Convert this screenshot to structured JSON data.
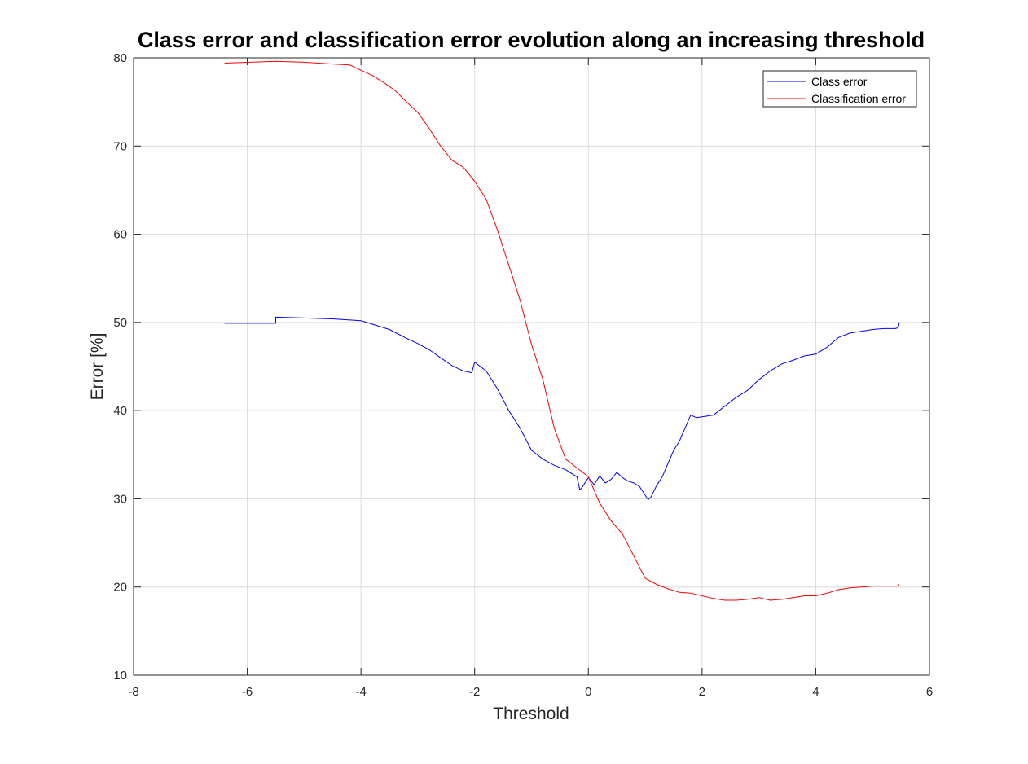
{
  "chart_data": {
    "type": "line",
    "title": "Class error and classification error evolution along an increasing threshold",
    "xlabel": "Threshold",
    "ylabel": "Error [%]",
    "xlim": [
      -8,
      6
    ],
    "ylim": [
      10,
      80
    ],
    "xticks": [
      -8,
      -6,
      -4,
      -2,
      0,
      2,
      4,
      6
    ],
    "yticks": [
      10,
      20,
      30,
      40,
      50,
      60,
      70,
      80
    ],
    "xtick_labels": [
      "-8",
      "-6",
      "-4",
      "-2",
      "0",
      "2",
      "4",
      "6"
    ],
    "ytick_labels": [
      "10",
      "20",
      "30",
      "40",
      "50",
      "60",
      "70",
      "80"
    ],
    "grid": true,
    "legend_position": "top-right",
    "series": [
      {
        "name": "Class error",
        "color": "#0000ff",
        "x": [
          -6.4,
          -5.5,
          -5.5,
          -5.0,
          -4.5,
          -4.0,
          -3.8,
          -3.5,
          -3.2,
          -3.0,
          -2.8,
          -2.6,
          -2.4,
          -2.2,
          -2.05,
          -2.0,
          -1.8,
          -1.6,
          -1.4,
          -1.2,
          -1.0,
          -0.8,
          -0.6,
          -0.4,
          -0.2,
          -0.15,
          -0.1,
          0.0,
          0.1,
          0.2,
          0.3,
          0.4,
          0.5,
          0.6,
          0.7,
          0.8,
          0.9,
          1.0,
          1.05,
          1.1,
          1.2,
          1.3,
          1.4,
          1.5,
          1.6,
          1.7,
          1.8,
          1.9,
          2.0,
          2.2,
          2.4,
          2.6,
          2.8,
          3.0,
          3.2,
          3.4,
          3.6,
          3.8,
          4.0,
          4.2,
          4.4,
          4.6,
          4.8,
          5.0,
          5.2,
          5.4,
          5.45,
          5.47
        ],
        "values": [
          49.9,
          49.9,
          50.6,
          50.5,
          50.4,
          50.2,
          49.8,
          49.2,
          48.2,
          47.6,
          46.9,
          46.0,
          45.1,
          44.5,
          44.3,
          45.5,
          44.5,
          42.5,
          40.0,
          38.0,
          35.5,
          34.5,
          33.8,
          33.3,
          32.5,
          31.0,
          31.4,
          32.4,
          31.6,
          32.6,
          31.8,
          32.2,
          33.0,
          32.4,
          32.0,
          31.8,
          31.4,
          30.4,
          29.9,
          30.2,
          31.5,
          32.5,
          34.0,
          35.5,
          36.5,
          38.0,
          39.5,
          39.2,
          39.3,
          39.5,
          40.5,
          41.5,
          42.3,
          43.5,
          44.5,
          45.3,
          45.7,
          46.2,
          46.4,
          47.2,
          48.3,
          48.8,
          49.0,
          49.2,
          49.3,
          49.3,
          49.4,
          50.0
        ]
      },
      {
        "name": "Classification error",
        "color": "#ff0000",
        "x": [
          -6.4,
          -5.5,
          -5.0,
          -4.5,
          -4.2,
          -4.0,
          -3.8,
          -3.6,
          -3.4,
          -3.2,
          -3.0,
          -2.8,
          -2.6,
          -2.4,
          -2.2,
          -2.0,
          -1.8,
          -1.6,
          -1.4,
          -1.2,
          -1.0,
          -0.8,
          -0.6,
          -0.4,
          -0.2,
          0.0,
          0.2,
          0.4,
          0.6,
          0.8,
          1.0,
          1.2,
          1.4,
          1.6,
          1.8,
          2.0,
          2.2,
          2.4,
          2.6,
          2.8,
          3.0,
          3.2,
          3.4,
          3.6,
          3.8,
          4.0,
          4.2,
          4.4,
          4.6,
          4.8,
          5.0,
          5.2,
          5.45,
          5.47
        ],
        "values": [
          79.4,
          79.6,
          79.5,
          79.3,
          79.2,
          78.6,
          78.0,
          77.2,
          76.3,
          75.0,
          73.8,
          72.0,
          70.0,
          68.4,
          67.6,
          66.0,
          64.0,
          60.5,
          56.5,
          52.5,
          47.5,
          43.5,
          38.0,
          34.5,
          33.5,
          32.5,
          29.5,
          27.5,
          26.0,
          23.5,
          21.0,
          20.3,
          19.8,
          19.4,
          19.3,
          19.0,
          18.7,
          18.5,
          18.5,
          18.6,
          18.8,
          18.5,
          18.6,
          18.8,
          19.0,
          19.0,
          19.3,
          19.7,
          19.9,
          20.0,
          20.1,
          20.1,
          20.1,
          20.3
        ]
      }
    ]
  }
}
